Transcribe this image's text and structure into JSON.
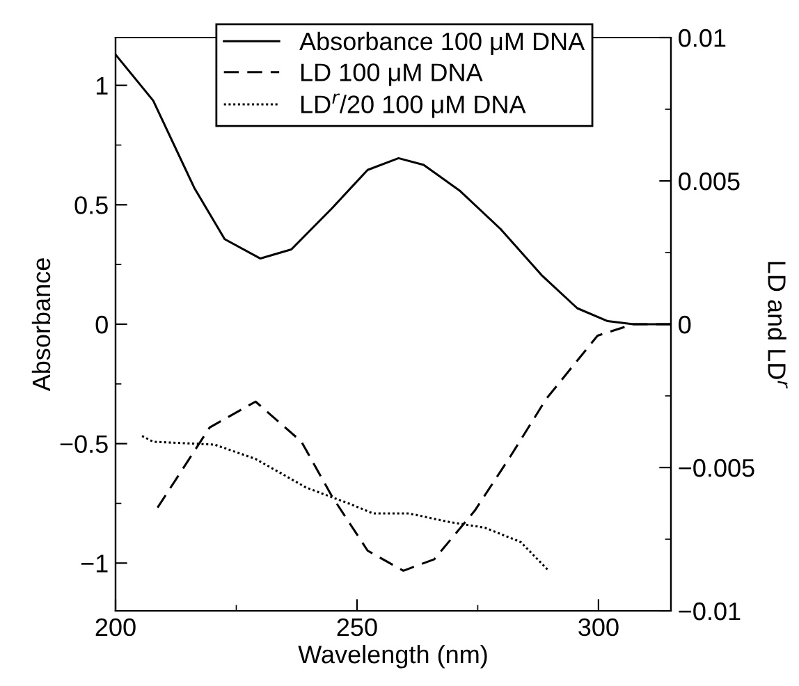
{
  "chart_data": {
    "type": "line",
    "xlabel": "Wavelength (nm)",
    "ylabel": "Absorbance",
    "y2label": "LD and LD$^{r}$",
    "xlim": [
      200,
      315
    ],
    "xticks": [
      200,
      250,
      300
    ],
    "ylim": [
      -1.2,
      1.2
    ],
    "yticks": [
      -1,
      -0.5,
      0,
      0.5,
      1
    ],
    "y2lim": [
      -0.01,
      0.01
    ],
    "y2ticks": [
      -0.01,
      -0.005,
      0,
      0.005,
      0.01
    ],
    "grid": false,
    "legend": "top",
    "marker": "none",
    "series": [
      {
        "name": "Absorbance 100 μM DNA",
        "color": "#000000",
        "line_style": "solid",
        "x": [
          200,
          207.8,
          216.3,
          222.6,
          230,
          236.4,
          244.8,
          252.2,
          258.6,
          263.8,
          271.2,
          279.7,
          288.2,
          295.6,
          301.9,
          307.2,
          315
        ],
        "values": [
          1.129,
          0.936,
          0.571,
          0.356,
          0.275,
          0.313,
          0.485,
          0.646,
          0.695,
          0.667,
          0.56,
          0.399,
          0.206,
          0.067,
          0.013,
          0,
          0
        ]
      },
      {
        "name": "LD 100 μM DNA",
        "color": "#000000",
        "line_style": "dashed",
        "axis": "y2",
        "x": [
          208.7,
          219.5,
          229,
          238.5,
          244.8,
          252.2,
          259.6,
          266,
          274.4,
          281.8,
          289.2,
          299.8,
          307.2,
          315
        ],
        "values": [
          -0.0064,
          -0.0036,
          -0.0027,
          -0.0041,
          -0.006,
          -0.0079,
          -0.0086,
          -0.0082,
          -0.0065,
          -0.0046,
          -0.0026,
          -0.0004,
          0,
          0
        ]
      },
      {
        "name": "LD$^{r}$/20 100 μM DNA",
        "color": "#000000",
        "line_style": "dotted",
        "axis": "y2",
        "x": [
          205.5,
          207.8,
          220.5,
          229,
          239.5,
          249,
          253.3,
          260.7,
          269.1,
          276.5,
          283.9,
          289.7
        ],
        "values": [
          -0.0039,
          -0.0041,
          -0.0042,
          -0.0047,
          -0.0057,
          -0.0063,
          -0.0066,
          -0.0066,
          -0.0069,
          -0.0071,
          -0.0076,
          -0.0086
        ]
      }
    ]
  }
}
